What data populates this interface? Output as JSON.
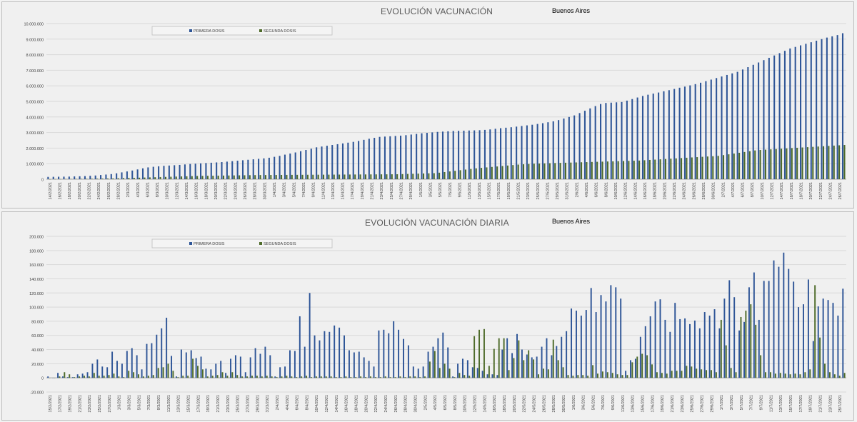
{
  "colors": {
    "first": "#2e5597",
    "second": "#4e6b2a"
  },
  "chart_data": [
    {
      "type": "bar",
      "title": "EVOLUCIÓN VACUNACIÓN",
      "subtitle": "Buenos Aires",
      "legend_position": "top-left",
      "legend": [
        "PRIMERA DOSIS",
        "SEGUNDA DOSIS"
      ],
      "ylim": [
        0,
        10000000
      ],
      "yticks": [
        "0",
        "1.000.000",
        "2.000.000",
        "3.000.000",
        "4.000.000",
        "5.000.000",
        "6.000.000",
        "7.000.000",
        "8.000.000",
        "9.000.000",
        "10.000.000"
      ],
      "xtick_labels": [
        "14/2/2021",
        "16/2/2021",
        "18/2/2021",
        "20/2/2021",
        "22/2/2021",
        "24/2/2021",
        "26/2/2021",
        "28/2/2021",
        "2/3/2021",
        "4/3/2021",
        "6/3/2021",
        "8/3/2021",
        "10/3/2021",
        "12/3/2021",
        "14/3/2021",
        "16/3/2021",
        "18/3/2021",
        "20/3/2021",
        "22/3/2021",
        "24/3/2021",
        "26/3/2021",
        "28/3/2021",
        "30/3/2021",
        "1/4/2021",
        "3/4/2021",
        "5/4/2021",
        "7/4/2021",
        "9/4/2021",
        "11/4/2021",
        "13/4/2021",
        "15/4/2021",
        "17/4/2021",
        "19/4/2021",
        "21/4/2021",
        "23/4/2021",
        "25/4/2021",
        "27/4/2021",
        "29/4/2021",
        "1/5/2021",
        "3/5/2021",
        "5/5/2021",
        "7/5/2021",
        "9/5/2021",
        "11/5/2021",
        "13/5/2021",
        "15/5/2021",
        "17/5/2021",
        "19/5/2021",
        "21/5/2021",
        "23/5/2021",
        "25/5/2021",
        "27/5/2021",
        "29/5/2021",
        "31/5/2021",
        "2/6/2021",
        "4/6/2021",
        "6/6/2021",
        "8/6/2021",
        "10/6/2021",
        "12/6/2021",
        "14/6/2021",
        "16/6/2021",
        "18/6/2021",
        "20/6/2021",
        "22/6/2021",
        "24/6/2021",
        "26/6/2021",
        "28/6/2021",
        "30/6/2021",
        "2/7/2021",
        "4/7/2021",
        "6/7/2021",
        "8/7/2021",
        "10/7/2021",
        "12/7/2021",
        "14/7/2021",
        "16/7/2021",
        "18/7/2021",
        "20/7/2021",
        "22/7/2021",
        "24/7/2021",
        "26/7/2021"
      ],
      "series": [
        {
          "name": "PRIMERA DOSIS",
          "values": [
            150000,
            155000,
            160000,
            165000,
            170000,
            180000,
            190000,
            200000,
            220000,
            240000,
            270000,
            300000,
            330000,
            380000,
            440000,
            500000,
            560000,
            630000,
            700000,
            760000,
            800000,
            830000,
            860000,
            880000,
            900000,
            920000,
            950000,
            980000,
            1000000,
            1020000,
            1040000,
            1060000,
            1080000,
            1100000,
            1130000,
            1160000,
            1190000,
            1220000,
            1250000,
            1280000,
            1310000,
            1340000,
            1380000,
            1440000,
            1500000,
            1580000,
            1650000,
            1720000,
            1800000,
            1880000,
            1960000,
            2050000,
            2100000,
            2150000,
            2200000,
            2250000,
            2300000,
            2350000,
            2400000,
            2460000,
            2530000,
            2600000,
            2660000,
            2720000,
            2740000,
            2760000,
            2780000,
            2800000,
            2830000,
            2870000,
            2910000,
            2950000,
            2980000,
            3010000,
            3040000,
            3060000,
            3080000,
            3100000,
            3110000,
            3120000,
            3130000,
            3140000,
            3150000,
            3170000,
            3200000,
            3240000,
            3280000,
            3310000,
            3340000,
            3380000,
            3420000,
            3460000,
            3500000,
            3550000,
            3600000,
            3660000,
            3720000,
            3800000,
            3900000,
            4000000,
            4100000,
            4250000,
            4400000,
            4550000,
            4700000,
            4830000,
            4900000,
            4920000,
            4940000,
            4960000,
            5050000,
            5150000,
            5250000,
            5350000,
            5430000,
            5500000,
            5570000,
            5650000,
            5720000,
            5800000,
            5880000,
            5950000,
            6030000,
            6110000,
            6200000,
            6300000,
            6400000,
            6500000,
            6600000,
            6700000,
            6800000,
            6900000,
            7050000,
            7200000,
            7350000,
            7500000,
            7650000,
            7800000,
            7950000,
            8100000,
            8250000,
            8400000,
            8500000,
            8600000,
            8700000,
            8800000,
            8900000,
            9000000,
            9100000,
            9180000,
            9260000,
            9380000
          ]
        },
        {
          "name": "SEGUNDA DOSIS",
          "values": [
            3000,
            6000,
            9000,
            12000,
            15000,
            18000,
            22000,
            26000,
            30000,
            35000,
            40000,
            45000,
            50000,
            60000,
            70000,
            80000,
            90000,
            100000,
            110000,
            120000,
            130000,
            140000,
            150000,
            160000,
            170000,
            180000,
            190000,
            200000,
            210000,
            215000,
            220000,
            225000,
            230000,
            235000,
            240000,
            245000,
            250000,
            255000,
            260000,
            265000,
            268000,
            270000,
            272000,
            274000,
            276000,
            278000,
            280000,
            282000,
            284000,
            286000,
            288000,
            290000,
            292000,
            294000,
            296000,
            298000,
            300000,
            302000,
            304000,
            306000,
            308000,
            310000,
            312000,
            314000,
            316000,
            318000,
            320000,
            330000,
            340000,
            350000,
            360000,
            370000,
            380000,
            390000,
            420000,
            460000,
            500000,
            540000,
            580000,
            620000,
            660000,
            700000,
            730000,
            760000,
            790000,
            820000,
            850000,
            880000,
            910000,
            940000,
            960000,
            980000,
            1000000,
            1010000,
            1020000,
            1030000,
            1040000,
            1050000,
            1060000,
            1070000,
            1080000,
            1090000,
            1100000,
            1110000,
            1120000,
            1130000,
            1140000,
            1150000,
            1160000,
            1170000,
            1180000,
            1190000,
            1200000,
            1220000,
            1240000,
            1260000,
            1280000,
            1300000,
            1320000,
            1340000,
            1360000,
            1380000,
            1400000,
            1420000,
            1440000,
            1460000,
            1480000,
            1500000,
            1550000,
            1600000,
            1650000,
            1700000,
            1750000,
            1800000,
            1850000,
            1880000,
            1900000,
            1920000,
            1940000,
            1960000,
            1980000,
            2000000,
            2020000,
            2040000,
            2060000,
            2080000,
            2100000,
            2120000,
            2140000,
            2160000,
            2180000,
            2200000
          ]
        }
      ]
    },
    {
      "type": "bar",
      "title": "EVOLUCIÓN VACUNACIÓN DIARIA",
      "subtitle": "Buenos Aires",
      "legend_position": "top-left",
      "legend": [
        "PRIMERA DOSIS",
        "SEGUNDA DOSIS"
      ],
      "ylim": [
        -20000,
        200000
      ],
      "yticks": [
        "-20.000",
        "0",
        "20.000",
        "40.000",
        "60.000",
        "80.000",
        "100.000",
        "120.000",
        "140.000",
        "160.000",
        "180.000",
        "200.000"
      ],
      "xtick_labels": [
        "15/2/2021",
        "17/2/2021",
        "19/2/2021",
        "21/2/2021",
        "23/2/2021",
        "25/2/2021",
        "27/2/2021",
        "1/3/2021",
        "3/3/2021",
        "5/3/2021",
        "7/3/2021",
        "9/3/2021",
        "11/3/2021",
        "13/3/2021",
        "15/3/2021",
        "17/3/2021",
        "19/3/2021",
        "21/3/2021",
        "23/3/2021",
        "25/3/2021",
        "27/3/2021",
        "29/3/2021",
        "31/3/2021",
        "2/4/2021",
        "4/4/2021",
        "6/4/2021",
        "8/4/2021",
        "10/4/2021",
        "12/4/2021",
        "14/4/2021",
        "16/4/2021",
        "18/4/2021",
        "20/4/2021",
        "22/4/2021",
        "24/4/2021",
        "26/4/2021",
        "28/4/2021",
        "30/4/2021",
        "2/5/2021",
        "4/5/2021",
        "6/5/2021",
        "8/5/2021",
        "10/5/2021",
        "12/5/2021",
        "14/5/2021",
        "16/5/2021",
        "18/5/2021",
        "20/5/2021",
        "22/5/2021",
        "24/5/2021",
        "26/5/2021",
        "28/5/2021",
        "30/5/2021",
        "1/6/2021",
        "3/6/2021",
        "5/6/2021",
        "7/6/2021",
        "9/6/2021",
        "11/6/2021",
        "13/6/2021",
        "15/6/2021",
        "17/6/2021",
        "19/6/2021",
        "21/6/2021",
        "23/6/2021",
        "25/6/2021",
        "27/6/2021",
        "29/6/2021",
        "1/7/2021",
        "3/7/2021",
        "5/7/2021",
        "7/7/2021",
        "9/7/2021",
        "11/7/2021",
        "13/7/2021",
        "15/7/2021",
        "17/7/2021",
        "19/7/2021",
        "21/7/2021",
        "23/7/2021",
        "25/7/2021"
      ],
      "series": [
        {
          "name": "PRIMERA DOSIS",
          "values": [
            2000,
            0,
            7000,
            2000,
            1000,
            1000,
            5000,
            6000,
            8000,
            20000,
            26000,
            16000,
            15000,
            37000,
            24000,
            20000,
            38000,
            42000,
            32000,
            12000,
            48000,
            49000,
            61000,
            70000,
            85000,
            31000,
            2000,
            40000,
            36000,
            39000,
            28000,
            30000,
            13000,
            12000,
            20000,
            24000,
            7000,
            27000,
            32000,
            30000,
            8000,
            29000,
            42000,
            34000,
            44000,
            32000,
            2000,
            15000,
            16000,
            39000,
            38000,
            87000,
            44000,
            120000,
            60000,
            53000,
            66000,
            65000,
            74000,
            71000,
            60000,
            39000,
            36000,
            37000,
            29000,
            24000,
            16000,
            67000,
            68000,
            63000,
            80000,
            68000,
            55000,
            46000,
            16000,
            13000,
            16000,
            37000,
            44000,
            56000,
            64000,
            43000,
            2000,
            20000,
            27000,
            25000,
            15000,
            14000,
            10000,
            5000,
            5000,
            4000,
            40000,
            56000,
            35000,
            62000,
            40000,
            33000,
            29000,
            30000,
            44000,
            56000,
            32000,
            45000,
            58000,
            66000,
            98000,
            95000,
            88000,
            96000,
            127000,
            93000,
            117000,
            108000,
            131000,
            128000,
            112000,
            10000,
            25000,
            27000,
            58000,
            73000,
            87000,
            108000,
            111000,
            82000,
            65000,
            106000,
            83000,
            84000,
            76000,
            81000,
            70000,
            93000,
            88000,
            97000,
            70000,
            112000,
            138000,
            114000,
            67000,
            79000,
            128000,
            149000,
            82000,
            137000,
            137000,
            166000,
            157000,
            177000,
            154000,
            136000,
            100000,
            104000,
            139000,
            52000,
            101000,
            112000,
            110000,
            106000,
            88000,
            126000
          ]
        },
        {
          "name": "SEGUNDA DOSIS",
          "values": [
            0,
            0,
            2000,
            8000,
            5000,
            1000,
            2000,
            3000,
            2000,
            7000,
            3000,
            3000,
            4000,
            6000,
            2000,
            1000,
            10000,
            8000,
            5000,
            2000,
            3000,
            4000,
            14000,
            15000,
            20000,
            10000,
            1000,
            3000,
            3000,
            27000,
            17000,
            12000,
            2000,
            3000,
            4000,
            8000,
            3000,
            8000,
            4000,
            2000,
            2000,
            3000,
            3000,
            2000,
            3000,
            2000,
            1000,
            2000,
            3000,
            2000,
            1000,
            2000,
            3000,
            1000,
            2000,
            2000,
            2000,
            2000,
            1000,
            1000,
            2000,
            1000,
            1000,
            2000,
            1000,
            2000,
            1000,
            1000,
            2000,
            1000,
            1000,
            2000,
            1000,
            2000,
            2000,
            1000,
            2000,
            23000,
            38000,
            14000,
            20000,
            13000,
            1000,
            7000,
            4000,
            3000,
            59000,
            68000,
            69000,
            17000,
            41000,
            56000,
            56000,
            11000,
            28000,
            53000,
            25000,
            39000,
            26000,
            5000,
            13000,
            12000,
            54000,
            25000,
            15000,
            4000,
            3000,
            4000,
            4000,
            3000,
            18000,
            6000,
            9000,
            8000,
            7000,
            5000,
            4000,
            4000,
            22000,
            30000,
            34000,
            32000,
            19000,
            8000,
            7000,
            6000,
            10000,
            10000,
            10000,
            17000,
            16000,
            13000,
            12000,
            11000,
            11000,
            8000,
            82000,
            46000,
            14000,
            8000,
            86000,
            95000,
            104000,
            75000,
            32000,
            8000,
            8000,
            6000,
            7000,
            6000,
            5000,
            6000,
            5000,
            8000,
            12000,
            131000,
            57000,
            20000,
            8000,
            5000,
            3000,
            7000
          ]
        }
      ]
    }
  ]
}
